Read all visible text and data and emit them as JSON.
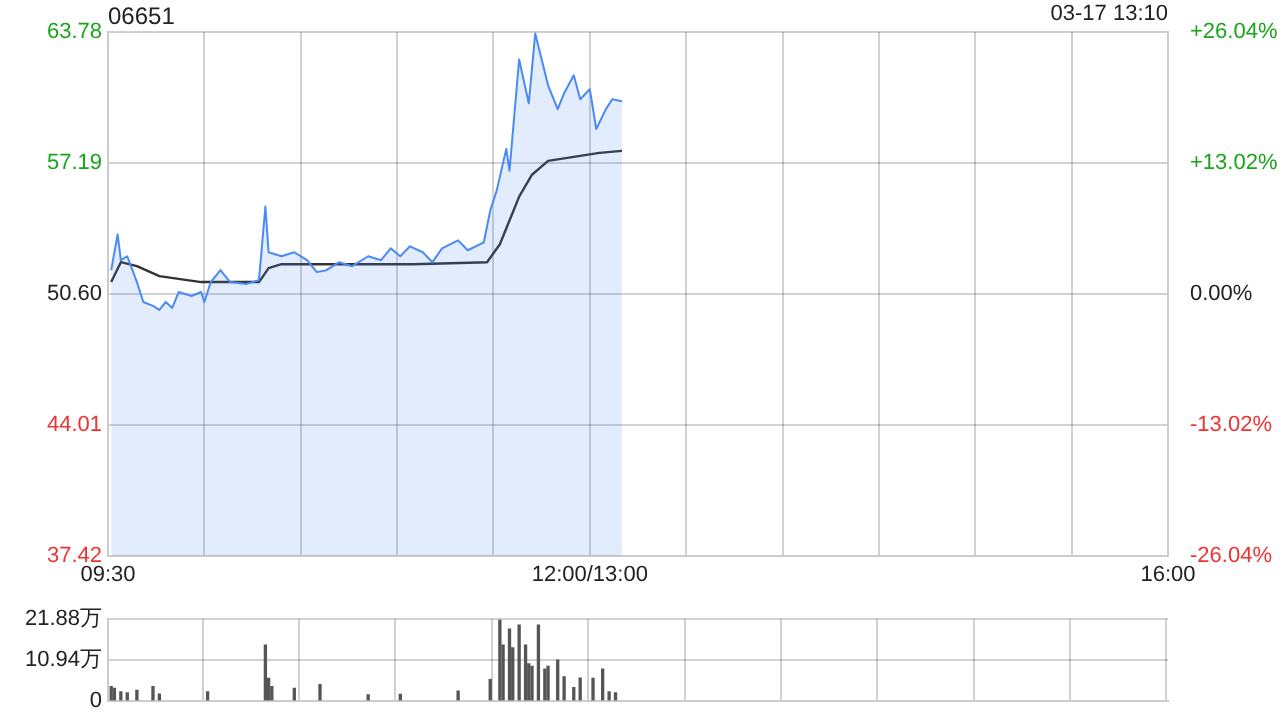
{
  "chart_data": [
    {
      "type": "area",
      "title": "06651",
      "annotations": [
        "03-17 13:10"
      ],
      "categories": [
        "09:30",
        null,
        null,
        null,
        null,
        null,
        null,
        null,
        null,
        null,
        null,
        null,
        null,
        null,
        null,
        null,
        null,
        null,
        null,
        null,
        null,
        null,
        null,
        null,
        null,
        null,
        null,
        null,
        null,
        null,
        null,
        null,
        null,
        null,
        null,
        null,
        null,
        null,
        null,
        null,
        null,
        null,
        null,
        null,
        null,
        null,
        null,
        null,
        null,
        null,
        null,
        null,
        null,
        null,
        null,
        null,
        null,
        null,
        null,
        null,
        null,
        null,
        null,
        null,
        null,
        null,
        null,
        null,
        null,
        null,
        null,
        null,
        null,
        null,
        null,
        null,
        null,
        null,
        null,
        null,
        null,
        null,
        null,
        null,
        null,
        null,
        null,
        null,
        null,
        null,
        null,
        null,
        null,
        null,
        null,
        null,
        null,
        null,
        null,
        null,
        null,
        null,
        null,
        null,
        null,
        null,
        null,
        null,
        null,
        null,
        null,
        null,
        null,
        null,
        null,
        null,
        null,
        null,
        null,
        null,
        null,
        null,
        null,
        null,
        null,
        null,
        null,
        null,
        null,
        null,
        null,
        null,
        null,
        null,
        null,
        null,
        null,
        null,
        null,
        null,
        null,
        null,
        null,
        null,
        null,
        null,
        null,
        null,
        null,
        null,
        "12:00/13:00",
        null,
        null,
        null,
        null,
        null,
        null,
        null,
        null,
        null,
        null,
        null,
        null,
        null,
        null,
        null,
        null,
        null,
        null,
        null,
        null,
        null,
        null,
        null,
        null,
        null,
        null,
        null,
        null,
        null,
        null,
        null,
        null,
        null,
        null,
        null,
        null,
        null,
        null,
        null,
        null,
        null,
        null,
        null,
        null,
        null,
        null,
        null,
        null,
        null,
        null,
        null,
        null,
        null,
        null,
        null,
        null,
        null,
        null,
        null,
        null,
        null,
        null,
        null,
        null,
        null,
        null,
        null,
        null,
        null,
        null,
        null,
        null,
        null,
        null,
        null,
        null,
        null,
        null,
        null,
        null,
        null,
        null,
        null,
        null,
        null,
        null,
        null,
        null,
        null,
        null,
        null,
        null,
        null,
        null,
        null,
        null,
        null,
        null,
        null,
        null,
        null,
        null,
        null,
        null,
        null,
        null,
        null,
        null,
        null,
        null,
        null,
        null,
        null,
        null,
        null,
        null,
        null,
        null,
        null,
        null,
        null,
        null,
        null,
        null,
        null,
        null,
        null,
        null,
        null,
        null,
        null,
        null,
        null,
        null,
        null,
        null,
        null,
        null,
        null,
        null,
        null,
        null,
        null,
        null,
        null,
        null,
        null,
        null,
        null,
        null,
        null,
        null,
        null,
        null,
        null,
        null,
        null,
        null,
        null,
        null,
        null,
        null,
        null,
        null,
        null,
        null,
        null,
        null,
        null,
        null,
        null,
        null,
        null,
        null,
        null,
        null,
        null,
        null,
        null,
        "16:00"
      ],
      "ylim": [
        37.42,
        63.78
      ],
      "yticks": [
        37.42,
        44.01,
        {
          "value": 50.6,
          "label": "50.60"
        },
        57.19,
        63.78
      ],
      "y2lim": [
        -26.04,
        26.04
      ],
      "y2ticks": [
        {
          "value": -26.04,
          "label": "-26.04%"
        },
        {
          "value": -13.02,
          "label": "-13.02%"
        },
        {
          "value": 0,
          "label": "0.00%"
        },
        {
          "value": 13.02,
          "label": "+13.02%"
        },
        {
          "value": 26.04,
          "label": "+26.04%"
        }
      ],
      "grid": true,
      "legend": false,
      "marker": "none",
      "series": [
        {
          "type": "area",
          "color": "#4a8af4",
          "values": [
            null,
            51.8,
            null,
            53.6,
            52.3,
            null,
            52.5,
            null,
            null,
            51.2,
            null,
            50.2,
            null,
            null,
            50.0,
            null,
            49.8,
            null,
            50.2,
            null,
            49.9,
            null,
            50.7,
            null,
            null,
            null,
            50.5,
            null,
            null,
            50.7,
            50.2,
            null,
            51.2,
            null,
            null,
            51.8,
            null,
            null,
            51.2,
            null,
            null,
            null,
            null,
            51.1,
            null,
            null,
            null,
            51.3,
            null,
            55.0,
            52.7,
            null,
            null,
            null,
            52.5,
            null,
            null,
            null,
            52.7,
            null,
            null,
            null,
            52.3,
            null,
            null,
            51.7,
            null,
            null,
            51.8,
            null,
            null,
            null,
            52.2,
            null,
            null,
            null,
            52.0,
            null,
            null,
            null,
            null,
            52.5,
            null,
            null,
            null,
            52.3,
            null,
            null,
            52.9,
            null,
            null,
            52.5,
            null,
            null,
            53.0,
            null,
            null,
            null,
            52.7,
            null,
            null,
            52.2,
            null,
            null,
            52.9,
            null,
            null,
            null,
            null,
            53.3,
            null,
            null,
            52.8,
            null,
            null,
            null,
            null,
            53.2,
            null,
            54.8,
            null,
            55.8,
            null,
            null,
            57.9,
            56.8,
            null,
            null,
            62.4,
            null,
            null,
            60.2,
            null,
            63.7,
            null,
            null,
            null,
            61.1,
            null,
            null,
            59.9,
            null,
            60.7,
            null,
            null,
            61.6,
            null,
            60.4,
            null,
            null,
            60.9,
            null,
            58.9,
            null,
            null,
            59.9,
            null,
            60.4,
            null,
            null,
            60.3,
            null,
            null,
            null,
            null,
            null,
            null,
            null,
            null,
            null,
            null,
            null,
            null,
            null,
            null,
            null,
            null,
            null,
            null,
            null,
            null,
            null,
            null,
            null,
            null,
            null,
            null,
            null,
            null,
            null,
            null,
            null,
            null,
            null,
            null,
            null,
            null,
            null,
            null,
            null,
            null,
            null,
            null,
            null,
            null,
            null,
            null,
            null,
            null,
            null,
            null,
            null,
            null,
            null,
            null,
            null,
            null,
            null,
            null,
            null,
            null,
            null,
            null,
            null,
            null,
            null,
            null,
            null,
            null,
            null,
            null,
            null,
            null,
            null,
            null,
            null,
            null,
            null,
            null,
            null,
            null,
            null,
            null,
            null,
            null,
            null,
            null,
            null,
            null,
            null,
            null,
            null,
            null,
            null,
            null,
            null,
            null,
            null,
            null,
            null,
            null,
            null,
            null,
            null,
            null,
            null,
            null,
            null,
            null,
            null,
            null,
            null,
            null,
            null,
            null,
            null,
            null,
            null,
            null,
            null,
            null,
            null,
            null,
            null,
            null,
            null,
            null,
            null,
            null,
            null,
            null,
            null,
            null,
            null,
            null,
            null,
            null,
            null,
            null,
            null,
            null,
            null,
            null,
            null,
            null,
            null,
            null,
            null,
            null,
            null,
            null,
            null,
            null,
            null,
            null,
            null,
            null,
            null,
            null,
            null,
            null,
            null,
            null,
            null,
            null,
            null,
            null,
            null,
            null,
            null,
            null
          ]
        },
        {
          "type": "line",
          "color": "#333333",
          "values": [
            null,
            51.2,
            null,
            null,
            52.2,
            null,
            null,
            null,
            null,
            52.0,
            null,
            null,
            null,
            null,
            null,
            null,
            51.5,
            null,
            null,
            null,
            null,
            null,
            null,
            null,
            null,
            null,
            null,
            null,
            null,
            51.2,
            null,
            null,
            null,
            null,
            null,
            null,
            null,
            null,
            null,
            null,
            null,
            null,
            null,
            null,
            null,
            null,
            null,
            51.2,
            null,
            null,
            51.9,
            null,
            null,
            null,
            52.1,
            null,
            null,
            null,
            null,
            null,
            null,
            null,
            null,
            null,
            null,
            null,
            null,
            null,
            null,
            null,
            null,
            null,
            null,
            null,
            52.1,
            null,
            null,
            null,
            null,
            null,
            null,
            null,
            null,
            null,
            null,
            null,
            null,
            null,
            null,
            null,
            null,
            null,
            null,
            null,
            null,
            52.1,
            null,
            null,
            null,
            null,
            null,
            null,
            null,
            null,
            null,
            null,
            null,
            null,
            null,
            null,
            null,
            null,
            null,
            null,
            null,
            null,
            null,
            null,
            52.2,
            null,
            null,
            null,
            53.1,
            null,
            null,
            null,
            null,
            null,
            55.5,
            null,
            null,
            null,
            56.6,
            null,
            null,
            null,
            null,
            57.3,
            null,
            null,
            null,
            null,
            null,
            null,
            null,
            57.5,
            null,
            null,
            null,
            null,
            null,
            null,
            null,
            57.7,
            null,
            null,
            null,
            null,
            null,
            null,
            57.8,
            null,
            null,
            null,
            null,
            null,
            null,
            null,
            null,
            null,
            null,
            null,
            null,
            null,
            null,
            null,
            null,
            null,
            null,
            null,
            null,
            null,
            null,
            null,
            null,
            null,
            null,
            null,
            null,
            null,
            null,
            null,
            null,
            null,
            null,
            null,
            null,
            null,
            null,
            null,
            null,
            null,
            null,
            null,
            null,
            null,
            null,
            null,
            null,
            null,
            null,
            null,
            null,
            null,
            null,
            null,
            null,
            null,
            null,
            null,
            null,
            null,
            null,
            null,
            null,
            null,
            null,
            null,
            null,
            null,
            null,
            null,
            null,
            null,
            null,
            null,
            null,
            null,
            null,
            null,
            null,
            null,
            null,
            null,
            null,
            null,
            null,
            null,
            null,
            null,
            null,
            null,
            null,
            null,
            null,
            null,
            null,
            null,
            null,
            null,
            null,
            null,
            null,
            null,
            null,
            null,
            null,
            null,
            null,
            null,
            null,
            null,
            null,
            null,
            null,
            null,
            null,
            null,
            null,
            null,
            null,
            null,
            null,
            null,
            null,
            null,
            null,
            null,
            null,
            null,
            null,
            null,
            null,
            null,
            null,
            null,
            null,
            null,
            null,
            null,
            null,
            null,
            null,
            null,
            null,
            null,
            null,
            null,
            null,
            null,
            null,
            null,
            null,
            null,
            null,
            null,
            null,
            null,
            null,
            null,
            null,
            null,
            null,
            null,
            null,
            null,
            null,
            null,
            null,
            null,
            null
          ]
        }
      ]
    },
    {
      "type": "bar",
      "color": "#555555",
      "categories": [
        null,
        null,
        null,
        null,
        null,
        null,
        null,
        null,
        null,
        null,
        null,
        null,
        null,
        null,
        null,
        null,
        null,
        null,
        null,
        null,
        null,
        null,
        null,
        null,
        null,
        null,
        null,
        null,
        null,
        null,
        null,
        null,
        null,
        null,
        null,
        null,
        null,
        null,
        null,
        null,
        null,
        null,
        null,
        null,
        null,
        null,
        null,
        null,
        null,
        null,
        null,
        null,
        null,
        null,
        null,
        null,
        null,
        null,
        null,
        null,
        null,
        null,
        null,
        null,
        null,
        null,
        null,
        null,
        null,
        null,
        null,
        null,
        null,
        null,
        null,
        null,
        null,
        null,
        null,
        null,
        null,
        null,
        null,
        null,
        null,
        null,
        null,
        null,
        null,
        null,
        null,
        null,
        null,
        null,
        null,
        null,
        null,
        null,
        null,
        null,
        null,
        null,
        null,
        null,
        null,
        null,
        null,
        null,
        null,
        null,
        null,
        null,
        null,
        null,
        null,
        null,
        null,
        null,
        null,
        null,
        null,
        null,
        null,
        null,
        null,
        null,
        null,
        null,
        null,
        null,
        null,
        null,
        null,
        null,
        null,
        null,
        null,
        null,
        null,
        null,
        null,
        null,
        null,
        null,
        null,
        null,
        null,
        null,
        null,
        null,
        null,
        null,
        null,
        null,
        null,
        null,
        null,
        null,
        null,
        null,
        null,
        null,
        null,
        null,
        null,
        null,
        null,
        null,
        null,
        null,
        null,
        null,
        null,
        null,
        null,
        null,
        null,
        null,
        null,
        null,
        null,
        null,
        null,
        null,
        null,
        null,
        null,
        null,
        null,
        null,
        null,
        null,
        null,
        null,
        null,
        null,
        null,
        null,
        null,
        null,
        null,
        null,
        null,
        null,
        null,
        null,
        null,
        null,
        null,
        null,
        null,
        null,
        null,
        null,
        null,
        null,
        null,
        null,
        null,
        null,
        null,
        null,
        null,
        null,
        null,
        null,
        null,
        null,
        null,
        null,
        null,
        null,
        null,
        null,
        null,
        null,
        null,
        null,
        null,
        null,
        null,
        null,
        null,
        null,
        null,
        null,
        null,
        null,
        null,
        null,
        null,
        null,
        null,
        null,
        null,
        null,
        null,
        null,
        null,
        null,
        null,
        null,
        null,
        null,
        null,
        null,
        null,
        null,
        null,
        null,
        null,
        null,
        null,
        null,
        null,
        null,
        null,
        null,
        null,
        null,
        null,
        null,
        null,
        null,
        null,
        null,
        null,
        null,
        null,
        null,
        null,
        null,
        null,
        null,
        null,
        null,
        null,
        null,
        null,
        null,
        null,
        null,
        null,
        null,
        null,
        null,
        null,
        null,
        null,
        null,
        null,
        null,
        null,
        null,
        null,
        null,
        null,
        null,
        null,
        null,
        null,
        null,
        null,
        null,
        null,
        null,
        null,
        null,
        null,
        null,
        null
      ],
      "ylim": [
        0,
        21.88
      ],
      "yticks": [
        0,
        {
          "value": 10.94,
          "label": "10.94万"
        },
        {
          "value": 21.88,
          "label": "21.88万"
        }
      ],
      "grid": true,
      "legend": false,
      "tick_labels": "y",
      "values": [
        null,
        3.8,
        3.3,
        null,
        2.4,
        null,
        2.1,
        null,
        null,
        2.8,
        null,
        null,
        null,
        null,
        3.8,
        null,
        1.8,
        null,
        null,
        null,
        null,
        null,
        null,
        null,
        null,
        null,
        null,
        null,
        null,
        null,
        null,
        2.4,
        null,
        null,
        null,
        null,
        null,
        null,
        null,
        null,
        null,
        null,
        null,
        null,
        null,
        null,
        null,
        null,
        null,
        14.9,
        6.0,
        3.8,
        null,
        null,
        null,
        null,
        null,
        null,
        3.3,
        null,
        null,
        null,
        null,
        null,
        null,
        null,
        4.3,
        null,
        null,
        null,
        null,
        null,
        null,
        null,
        null,
        null,
        null,
        null,
        null,
        null,
        null,
        1.6,
        null,
        null,
        null,
        null,
        null,
        null,
        null,
        null,
        null,
        1.7,
        null,
        null,
        null,
        null,
        null,
        null,
        null,
        null,
        null,
        null,
        null,
        null,
        null,
        null,
        null,
        null,
        null,
        2.6,
        null,
        null,
        null,
        null,
        null,
        null,
        null,
        null,
        null,
        5.7,
        null,
        null,
        21.6,
        14.9,
        null,
        19.2,
        14.2,
        null,
        20.3,
        null,
        14.9,
        9.9,
        9.2,
        null,
        20.3,
        null,
        8.5,
        9.2,
        null,
        null,
        10.9,
        null,
        6.4,
        null,
        null,
        3.5,
        null,
        6.1,
        null,
        null,
        null,
        6.0,
        null,
        null,
        8.5,
        null,
        2.4,
        null,
        2.1,
        null,
        null,
        null,
        null,
        null,
        null,
        null,
        null,
        null,
        null,
        null,
        null,
        null,
        null,
        null,
        null,
        null,
        null,
        null,
        null,
        null,
        null,
        null,
        null,
        null,
        null,
        null,
        null,
        null,
        null,
        null,
        null,
        null,
        null,
        null,
        null,
        null,
        null,
        null,
        null,
        null,
        null,
        null,
        null,
        null,
        null,
        null,
        null,
        null,
        null,
        null,
        null,
        null,
        null,
        null,
        null,
        null,
        null,
        null,
        null,
        null,
        null,
        null,
        null,
        null,
        null,
        null,
        null,
        null,
        null,
        null,
        null,
        null,
        null,
        null,
        null,
        null,
        null,
        null,
        null,
        null,
        null,
        null,
        null,
        null,
        null,
        null,
        null,
        null,
        null,
        null,
        null,
        null,
        null,
        null,
        null,
        null,
        null,
        null,
        null,
        null,
        null,
        null,
        null,
        null,
        null,
        null,
        null,
        null,
        null,
        null,
        null,
        null,
        null,
        null,
        null,
        null,
        null,
        null,
        null,
        null,
        null,
        null,
        null,
        null,
        null,
        null,
        null,
        null,
        null,
        null,
        null,
        null,
        null,
        null,
        null,
        null,
        null,
        null,
        null,
        null,
        null,
        null,
        null,
        null,
        null,
        null,
        null,
        null,
        null,
        null,
        null,
        null,
        null,
        null,
        null,
        null,
        null,
        null,
        null,
        null,
        null,
        null,
        null,
        null,
        null,
        null,
        null,
        null,
        null,
        null,
        null
      ]
    }
  ]
}
